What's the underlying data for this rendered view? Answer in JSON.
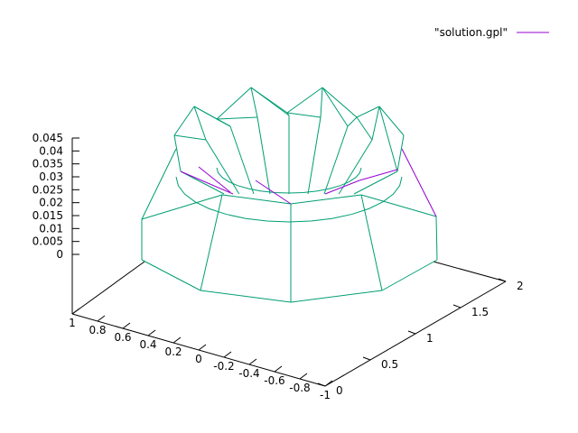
{
  "chart_data": {
    "type": "surface3d",
    "title": "",
    "legend": {
      "position": "top-right",
      "entries": [
        {
          "label": "\"solution.gpl\"",
          "color": "#9400d3"
        }
      ]
    },
    "colors": {
      "surface_top": "#009e73",
      "surface_bottom": "#9400d3",
      "axes": "#000000"
    },
    "axes": {
      "z": {
        "ticks": [
          "0.045",
          "0.04",
          "0.035",
          "0.03",
          "0.025",
          "0.02",
          "0.015",
          "0.01",
          "0.005",
          "0"
        ],
        "range": [
          0,
          0.045
        ]
      },
      "x": {
        "ticks": [
          "1",
          "0.8",
          "0.6",
          "0.4",
          "0.2",
          "0",
          "-0.2",
          "-0.4",
          "-0.6",
          "-0.8",
          "-1"
        ],
        "range": [
          -1,
          1
        ]
      },
      "y": {
        "ticks": [
          "0",
          "0.5",
          "1",
          "1.5",
          "2"
        ],
        "range": [
          0,
          2
        ]
      }
    }
  }
}
